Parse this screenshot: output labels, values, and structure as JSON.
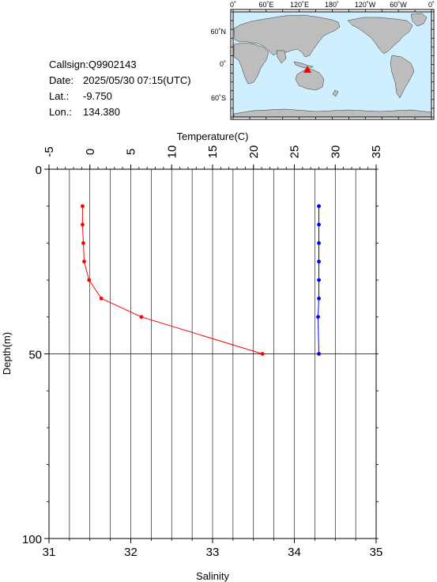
{
  "info": {
    "callsign_label": "Callsign:",
    "callsign": "Q9902143",
    "date_label": "Date:",
    "date": "2025/05/30 07:15(UTC)",
    "lat_label": "Lat.:",
    "lat": "-9.750",
    "lon_label": "Lon.:",
    "lon": "134.380"
  },
  "map": {
    "ocean_color": "#cfefff",
    "land_color": "#bdbdbd",
    "marker_color": "#ff0000",
    "top_labels": [
      "0˚",
      "60˚E",
      "120˚E",
      "180˚",
      "120˚W",
      "60˚W",
      "0˚"
    ],
    "right_labels": [
      "60˚N",
      "0˚",
      "60˚S"
    ]
  },
  "chart_data": {
    "type": "line",
    "x_top": {
      "label": "Temperature(C)",
      "range": [
        -5,
        35
      ],
      "ticks": [
        -5,
        0,
        5,
        10,
        15,
        20,
        25,
        30,
        35
      ]
    },
    "x_bottom": {
      "label": "Salinity",
      "range": [
        31,
        35
      ],
      "ticks": [
        31,
        32,
        33,
        34,
        35
      ]
    },
    "y": {
      "label": "Depth(m)",
      "range": [
        0,
        100
      ],
      "ticks": [
        0,
        50,
        100
      ],
      "inverted": true
    },
    "grid": true,
    "series": [
      {
        "color": "#ff0000",
        "axis": "salinity",
        "points": [
          {
            "depth": 10,
            "value": 31.41
          },
          {
            "depth": 15,
            "value": 31.41
          },
          {
            "depth": 20,
            "value": 31.42
          },
          {
            "depth": 25,
            "value": 31.43
          },
          {
            "depth": 30,
            "value": 31.49
          },
          {
            "depth": 35,
            "value": 31.64
          },
          {
            "depth": 40,
            "value": 32.13
          },
          {
            "depth": 50,
            "value": 33.61
          }
        ]
      },
      {
        "color": "#0000ff",
        "axis": "salinity",
        "points": [
          {
            "depth": 10,
            "value": 34.3
          },
          {
            "depth": 15,
            "value": 34.3
          },
          {
            "depth": 20,
            "value": 34.3
          },
          {
            "depth": 25,
            "value": 34.3
          },
          {
            "depth": 30,
            "value": 34.3
          },
          {
            "depth": 35,
            "value": 34.3
          },
          {
            "depth": 40,
            "value": 34.29
          },
          {
            "depth": 50,
            "value": 34.3
          }
        ]
      }
    ]
  }
}
